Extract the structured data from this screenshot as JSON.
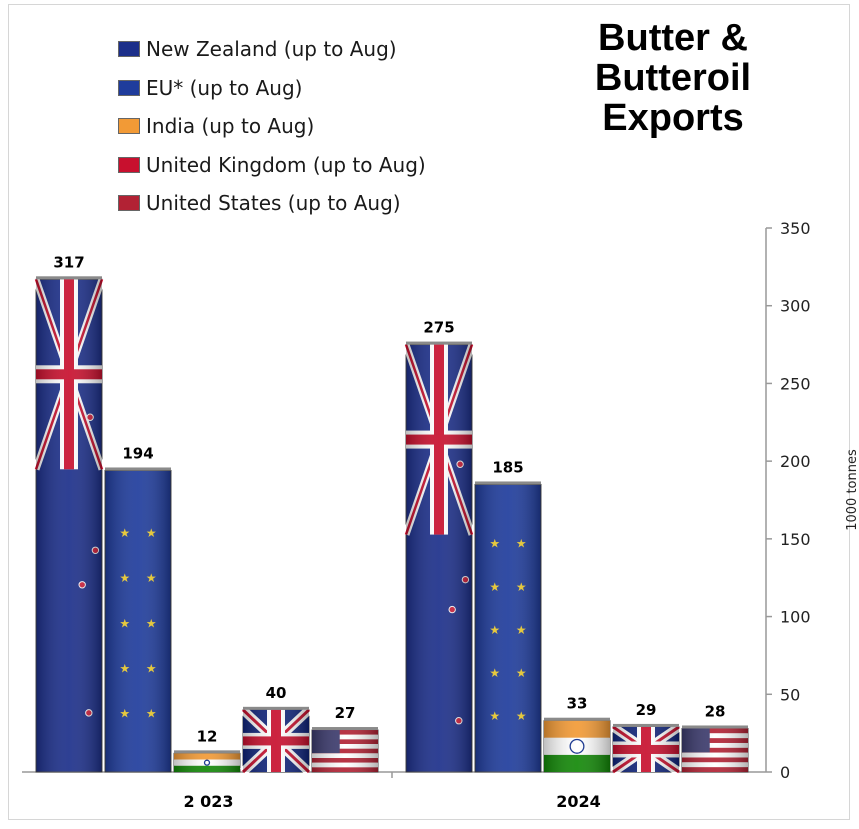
{
  "chart_data": {
    "type": "bar",
    "title": "Butter & Butteroil Exports",
    "categories": [
      "2 023",
      "2024"
    ],
    "series": [
      {
        "name": "New Zealand (up to Aug)",
        "values": [
          317,
          275
        ],
        "color": "#1c2f8a"
      },
      {
        "name": "EU* (up to Aug)",
        "values": [
          194,
          185
        ],
        "color": "#1f3c9c"
      },
      {
        "name": "India (up to Aug)",
        "values": [
          12,
          33
        ],
        "color": "#f29a36"
      },
      {
        "name": "United Kingdom (up to Aug)",
        "values": [
          40,
          29
        ],
        "color": "#c8102e"
      },
      {
        "name": "United States (up to Aug)",
        "values": [
          27,
          28
        ],
        "color": "#b22234"
      }
    ],
    "ylabel": "1000 tonnes",
    "ylim": [
      0,
      350
    ],
    "yticks": [
      0,
      50,
      100,
      150,
      200,
      250,
      300,
      350
    ],
    "y_axis_side": "right",
    "legend_position": "top-left",
    "grid": false
  }
}
